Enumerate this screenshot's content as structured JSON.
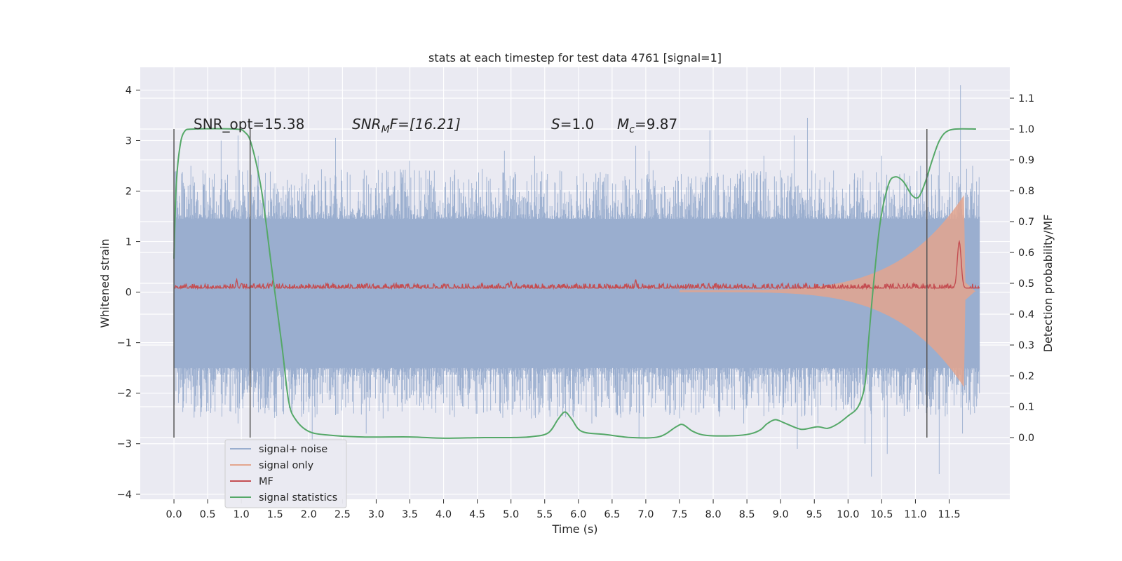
{
  "chart_data": {
    "type": "line",
    "title": "stats at each timestep for test data 4761 [signal=1]",
    "xlabel": "Time (s)",
    "ylabel_left": "Whitened strain",
    "ylabel_right": "Detection probability/MF",
    "xlim": [
      -0.5,
      12.4
    ],
    "ylim_left": [
      -4.1,
      4.45
    ],
    "ylim_right": [
      -0.2,
      1.2
    ],
    "x_ticks": [
      "0.0",
      "0.5",
      "1.0",
      "1.5",
      "2.0",
      "2.5",
      "3.0",
      "3.5",
      "4.0",
      "4.5",
      "5.0",
      "5.5",
      "6.0",
      "6.5",
      "7.0",
      "7.5",
      "8.0",
      "8.5",
      "9.0",
      "9.5",
      "10.0",
      "10.5",
      "11.0",
      "11.5"
    ],
    "y_ticks_left": [
      "4",
      "3",
      "2",
      "1",
      "0",
      "−1",
      "−2",
      "−3",
      "−4"
    ],
    "y_ticks_right": [
      "1.1",
      "1.0",
      "0.9",
      "0.8",
      "0.7",
      "0.6",
      "0.5",
      "0.4",
      "0.3",
      "0.2",
      "0.1",
      "0.0"
    ],
    "grid": true,
    "legend_position": "lower-left",
    "annotations": {
      "snr_opt": "SNR_opt=15.38",
      "snr_mf_name": "SNR",
      "snr_mf_sub": "M",
      "snr_mf_rest": "F=[16.21]",
      "s_name": "S",
      "s_value": "=1.0",
      "mc_name": "M",
      "mc_sub": "c",
      "mc_value": "=9.87"
    },
    "vertical_markers_x": [
      0.0,
      1.13,
      11.17
    ],
    "series": [
      {
        "name": "signal+ noise",
        "axis": "left",
        "color": "#9aaecf",
        "t_end": 11.95,
        "envelope_hi": 1.45,
        "envelope_lo": -1.5,
        "spikes_up": [
          [
            0.03,
            2.4
          ],
          [
            0.25,
            2.5
          ],
          [
            0.7,
            3.0
          ],
          [
            0.95,
            3.1
          ],
          [
            1.25,
            2.7
          ],
          [
            2.4,
            3.05
          ],
          [
            3.5,
            2.6
          ],
          [
            4.9,
            2.8
          ],
          [
            5.35,
            2.7
          ],
          [
            6.85,
            2.9
          ],
          [
            7.05,
            2.8
          ],
          [
            7.95,
            3.2
          ],
          [
            8.75,
            2.7
          ],
          [
            9.2,
            3.1
          ],
          [
            9.4,
            3.45
          ],
          [
            10.5,
            2.7
          ],
          [
            11.08,
            2.5
          ],
          [
            11.35,
            2.8
          ],
          [
            11.67,
            4.1
          ],
          [
            11.85,
            2.5
          ]
        ],
        "spikes_down": [
          [
            0.55,
            -2.3
          ],
          [
            0.95,
            -2.6
          ],
          [
            1.35,
            -2.4
          ],
          [
            2.05,
            -3.2
          ],
          [
            2.2,
            -2.2
          ],
          [
            2.85,
            -2.8
          ],
          [
            3.1,
            -2.5
          ],
          [
            4.0,
            -2.2
          ],
          [
            5.3,
            -2.5
          ],
          [
            6.2,
            -2.6
          ],
          [
            6.9,
            -2.9
          ],
          [
            7.5,
            -2.5
          ],
          [
            8.45,
            -2.6
          ],
          [
            8.9,
            -2.3
          ],
          [
            9.25,
            -3.1
          ],
          [
            9.55,
            -2.6
          ],
          [
            10.25,
            -3.0
          ],
          [
            10.35,
            -3.65
          ],
          [
            10.58,
            -3.2
          ],
          [
            11.35,
            -3.6
          ],
          [
            11.7,
            -2.8
          ]
        ]
      },
      {
        "name": "signal only",
        "axis": "left",
        "color": "#e3a58e",
        "t_start": 7.5,
        "t_merge": 11.72,
        "amp_start": 0.02,
        "amp_max": 1.9
      },
      {
        "name": "MF",
        "axis": "left",
        "color": "#c44e52",
        "t_end": 11.95,
        "baseline": 0.08,
        "band": 0.09,
        "peaks": [
          [
            11.65,
            1.0
          ],
          [
            1.47,
            0.25
          ],
          [
            0.93,
            0.25
          ],
          [
            6.85,
            0.25
          ],
          [
            5.0,
            0.22
          ]
        ]
      },
      {
        "name": "signal statistics",
        "axis": "right",
        "color": "#55a868",
        "points": [
          [
            0.0,
            0.58
          ],
          [
            0.03,
            0.8
          ],
          [
            0.08,
            0.93
          ],
          [
            0.15,
            0.99
          ],
          [
            0.3,
            1.0
          ],
          [
            0.9,
            1.0
          ],
          [
            1.05,
            0.99
          ],
          [
            1.15,
            0.95
          ],
          [
            1.3,
            0.8
          ],
          [
            1.45,
            0.55
          ],
          [
            1.6,
            0.3
          ],
          [
            1.7,
            0.12
          ],
          [
            1.8,
            0.06
          ],
          [
            2.0,
            0.02
          ],
          [
            2.3,
            0.008
          ],
          [
            2.8,
            0.002
          ],
          [
            3.5,
            0.002
          ],
          [
            4.0,
            -0.002
          ],
          [
            4.6,
            0.0
          ],
          [
            5.0,
            0.0
          ],
          [
            5.3,
            0.003
          ],
          [
            5.55,
            0.015
          ],
          [
            5.7,
            0.06
          ],
          [
            5.8,
            0.083
          ],
          [
            5.9,
            0.06
          ],
          [
            6.05,
            0.02
          ],
          [
            6.4,
            0.01
          ],
          [
            6.8,
            0.0
          ],
          [
            7.2,
            0.003
          ],
          [
            7.45,
            0.035
          ],
          [
            7.55,
            0.042
          ],
          [
            7.7,
            0.02
          ],
          [
            7.9,
            0.007
          ],
          [
            8.3,
            0.006
          ],
          [
            8.55,
            0.012
          ],
          [
            8.7,
            0.025
          ],
          [
            8.8,
            0.045
          ],
          [
            8.92,
            0.058
          ],
          [
            9.05,
            0.048
          ],
          [
            9.25,
            0.03
          ],
          [
            9.35,
            0.027
          ],
          [
            9.55,
            0.035
          ],
          [
            9.7,
            0.03
          ],
          [
            9.85,
            0.045
          ],
          [
            10.0,
            0.07
          ],
          [
            10.15,
            0.1
          ],
          [
            10.25,
            0.17
          ],
          [
            10.3,
            0.3
          ],
          [
            10.38,
            0.5
          ],
          [
            10.48,
            0.7
          ],
          [
            10.6,
            0.82
          ],
          [
            10.7,
            0.845
          ],
          [
            10.82,
            0.83
          ],
          [
            10.95,
            0.785
          ],
          [
            11.05,
            0.78
          ],
          [
            11.15,
            0.83
          ],
          [
            11.25,
            0.9
          ],
          [
            11.35,
            0.96
          ],
          [
            11.45,
            0.99
          ],
          [
            11.6,
            1.0
          ],
          [
            11.9,
            1.0
          ]
        ]
      }
    ]
  }
}
